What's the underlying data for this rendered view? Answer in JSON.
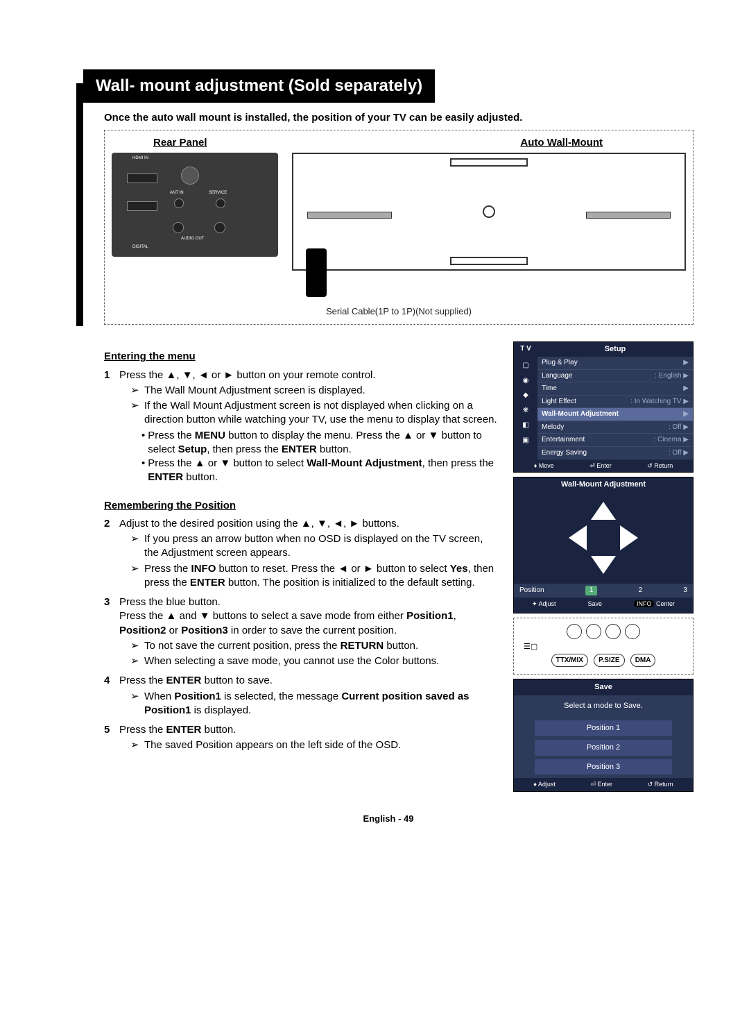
{
  "title": "Wall- mount adjustment (Sold separately)",
  "intro": "Once the auto wall mount is installed, the position of your TV can be easily adjusted.",
  "diagram": {
    "rear_label": "Rear Panel",
    "mount_label": "Auto Wall-Mount",
    "cable_note": "Serial Cable(1P to 1P)(Not supplied)",
    "ports": {
      "hdmi_in": "HDMI IN",
      "ant_in": "ANT IN",
      "service": "SERVICE",
      "audio_out": "AUDIO OUT",
      "digital": "DIGITAL"
    }
  },
  "section1": {
    "heading": "Entering the menu",
    "step1_num": "1",
    "step1_text_a": "Press the ▲, ▼, ◄ or ► button on your remote control.",
    "s1_sub1": "The Wall Mount Adjustment screen is displayed.",
    "s1_sub2": "If the Wall Mount Adjustment screen is not displayed when clicking on a direction button while watching your TV, use the menu to display that screen.",
    "s1_b1_a": "Press the ",
    "s1_b1_b": "MENU",
    "s1_b1_c": " button to display the menu. Press the ▲ or ▼ button to select ",
    "s1_b1_d": "Setup",
    "s1_b1_e": ", then press the ",
    "s1_b1_f": "ENTER",
    "s1_b1_g": " button.",
    "s1_b2_a": "Press the ▲ or ▼ button to select ",
    "s1_b2_b": "Wall-Mount Adjustment",
    "s1_b2_c": ", then press the ",
    "s1_b2_d": "ENTER",
    "s1_b2_e": " button."
  },
  "section2": {
    "heading": "Remembering the Position",
    "step2_num": "2",
    "step2_text": "Adjust to the desired position using the ▲, ▼, ◄, ► buttons.",
    "s2_sub1": "If you press an arrow button when no OSD is displayed on the TV screen, the Adjustment screen appears.",
    "s2_sub2_a": "Press the ",
    "s2_sub2_b": "INFO",
    "s2_sub2_c": " button to reset. Press the ◄ or ► button to select ",
    "s2_sub2_d": "Yes",
    "s2_sub2_e": ", then press the ",
    "s2_sub2_f": "ENTER",
    "s2_sub2_g": " button. The position is initialized to the default setting.",
    "step3_num": "3",
    "step3_l1": "Press the blue button.",
    "step3_l2_a": "Press the ▲ and ▼ buttons to select a save mode from either ",
    "step3_l2_b": "Position1",
    "step3_l2_c": ", ",
    "step3_l2_d": "Position2",
    "step3_l2_e": " or ",
    "step3_l2_f": "Position3",
    "step3_l2_g": " in order to save the current position.",
    "s3_sub1_a": "To not save the current position, press the ",
    "s3_sub1_b": "RETURN",
    "s3_sub1_c": " button.",
    "s3_sub2": "When selecting a save mode, you cannot use the Color buttons.",
    "step4_num": "4",
    "step4_a": "Press the ",
    "step4_b": "ENTER",
    "step4_c": " button to save.",
    "s4_sub1_a": "When ",
    "s4_sub1_b": "Position1",
    "s4_sub1_c": " is selected, the message ",
    "s4_sub1_d": "Current position saved as Position1",
    "s4_sub1_e": " is displayed.",
    "step5_num": "5",
    "step5_a": "Press the ",
    "step5_b": "ENTER",
    "step5_c": " button.",
    "s5_sub1": "The saved Position appears on the left side of the OSD."
  },
  "osd_setup": {
    "tv": "T V",
    "title": "Setup",
    "items": [
      {
        "l": "Plug & Play",
        "v": ""
      },
      {
        "l": "Language",
        "v": ": English"
      },
      {
        "l": "Time",
        "v": ""
      },
      {
        "l": "Light Effect",
        "v": ": In Watching TV"
      },
      {
        "l": "Wall-Mount Adjustment",
        "v": ""
      },
      {
        "l": "Melody",
        "v": ": Off"
      },
      {
        "l": "Entertainment",
        "v": ": Cinema"
      },
      {
        "l": "Energy Saving",
        "v": ": Off"
      }
    ],
    "move": "Move",
    "enter": "Enter",
    "return": "Return"
  },
  "osd_adjust": {
    "title": "Wall-Mount Adjustment",
    "position": "Position",
    "p1": "1",
    "p2": "2",
    "p3": "3",
    "adjust": "Adjust",
    "save": "Save",
    "info": "INFO",
    "center": "Center"
  },
  "remote": {
    "ttx": "TTX/MIX",
    "psize": "P.SIZE",
    "dma": "DMA"
  },
  "osd_save": {
    "title": "Save",
    "prompt": "Select a mode to Save.",
    "opt1": "Position 1",
    "opt2": "Position 2",
    "opt3": "Position 3",
    "adjust": "Adjust",
    "enter": "Enter",
    "return": "Return"
  },
  "footer": "English - 49",
  "colors": {
    "title_bg": "#000000",
    "title_fg": "#ffffff",
    "osd_bg": "#2d3a5a",
    "osd_hdr": "#1a2440",
    "osd_text": "#ffffff",
    "dashed": "#666666"
  }
}
